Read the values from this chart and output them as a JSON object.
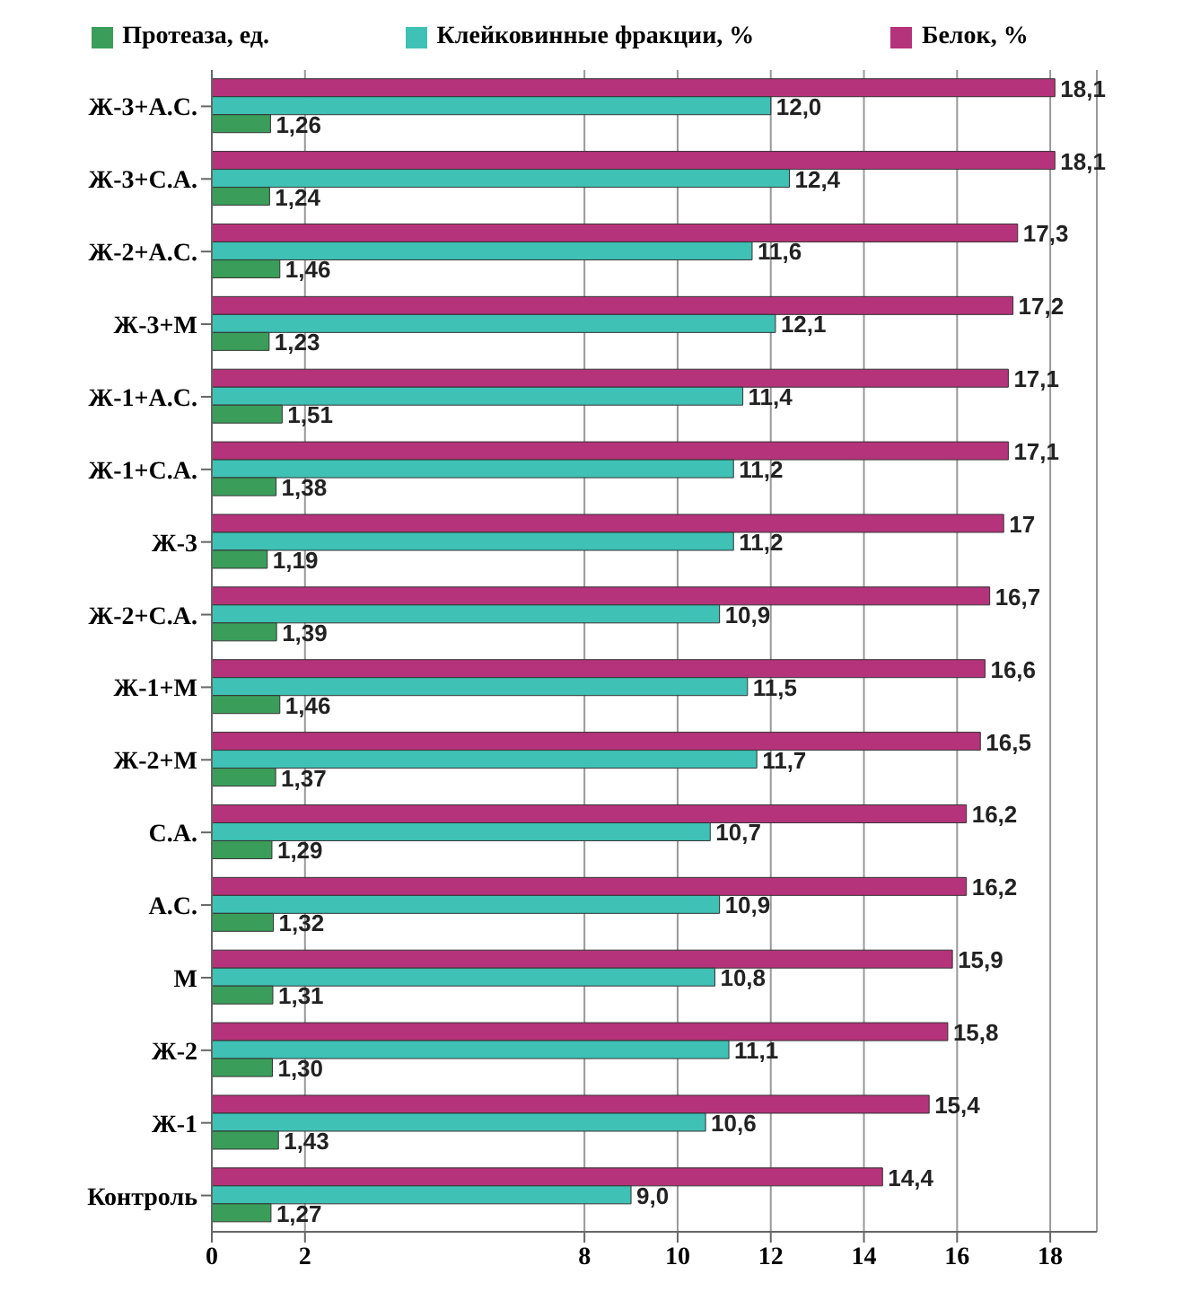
{
  "chart_data": {
    "type": "bar",
    "orientation": "horizontal",
    "categories": [
      "Ж-3+А.С.",
      "Ж-3+С.А.",
      "Ж-2+А.С.",
      "Ж-3+М",
      "Ж-1+А.С.",
      "Ж-1+С.А.",
      "Ж-3",
      "Ж-2+С.А.",
      "Ж-1+М",
      "Ж-2+М",
      "С.А.",
      "А.С.",
      "М",
      "Ж-2",
      "Ж-1",
      "Контроль"
    ],
    "series": [
      {
        "name": "Протеаза, ед.",
        "color": "#3a9e5a",
        "values": [
          1.26,
          1.24,
          1.46,
          1.23,
          1.51,
          1.38,
          1.19,
          1.39,
          1.46,
          1.37,
          1.29,
          1.32,
          1.31,
          1.3,
          1.43,
          1.27
        ],
        "value_labels": [
          "1,26",
          "1,24",
          "1,46",
          "1,23",
          "1,51",
          "1,38",
          "1,19",
          "1,39",
          "1,46",
          "1,37",
          "1,29",
          "1,32",
          "1,31",
          "1,30",
          "1,43",
          "1,27"
        ]
      },
      {
        "name": "Клейковинные фракции, %",
        "color": "#3fc1b5",
        "values": [
          12.0,
          12.4,
          11.6,
          12.1,
          11.4,
          11.2,
          11.2,
          10.9,
          11.5,
          11.7,
          10.7,
          10.9,
          10.8,
          11.1,
          10.6,
          9.0
        ],
        "value_labels": [
          "12,0",
          "12,4",
          "11,6",
          "12,1",
          "11,4",
          "11,2",
          "11,2",
          "10,9",
          "11,5",
          "11,7",
          "10,7",
          "10,9",
          "10,8",
          "11,1",
          "10,6",
          "9,0"
        ]
      },
      {
        "name": "Белок, %",
        "color": "#b5337a",
        "values": [
          18.1,
          18.1,
          17.3,
          17.2,
          17.1,
          17.1,
          17,
          16.7,
          16.6,
          16.5,
          16.2,
          16.2,
          15.9,
          15.8,
          15.4,
          14.4
        ],
        "value_labels": [
          "18,1",
          "18,1",
          "17,3",
          "17,2",
          "17,1",
          "17,1",
          "17",
          "16,7",
          "16,6",
          "16,5",
          "16,2",
          "16,2",
          "15,9",
          "15,8",
          "15,4",
          "14,4"
        ]
      }
    ],
    "xlim": [
      0,
      19
    ],
    "xticks": [
      0,
      2,
      8,
      10,
      12,
      14,
      16,
      18
    ],
    "grid": "x",
    "legend": "top"
  }
}
